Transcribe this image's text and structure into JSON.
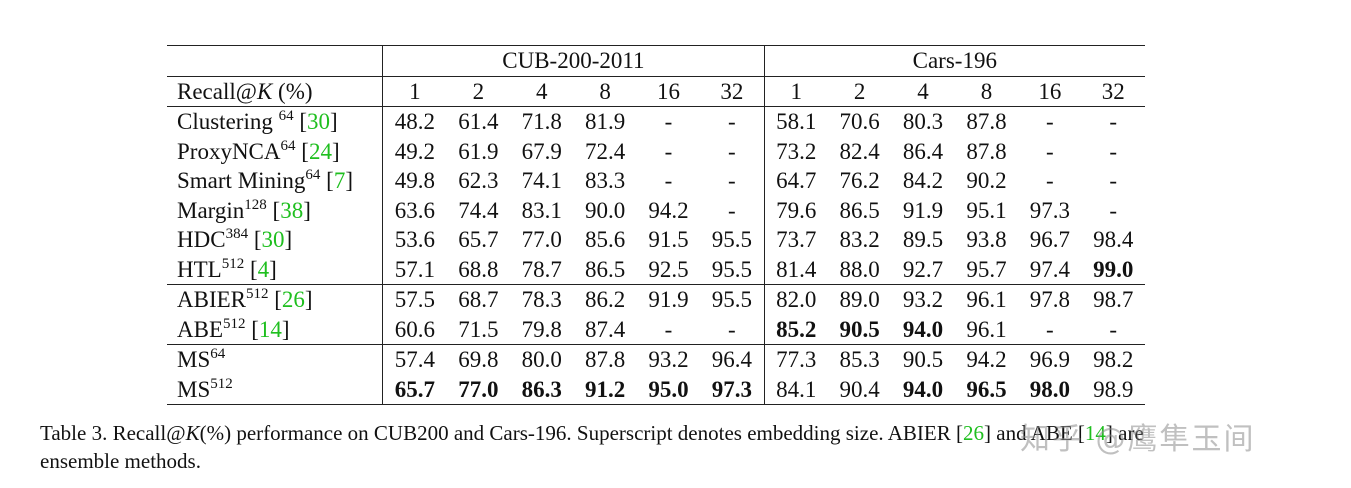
{
  "table": {
    "header_label": "Recall@K (%)",
    "group_a": "CUB-200-2011",
    "group_b": "Cars-196",
    "ks": [
      "1",
      "2",
      "4",
      "8",
      "16",
      "32"
    ],
    "rows": [
      {
        "name": "Clustering ",
        "sup": "64",
        "cite": "30",
        "cells": [
          "48.2",
          "61.4",
          "71.8",
          "81.9",
          "-",
          "-",
          "58.1",
          "70.6",
          "80.3",
          "87.8",
          "-",
          "-"
        ],
        "bold": []
      },
      {
        "name": "ProxyNCA",
        "sup": "64",
        "cite": "24",
        "cells": [
          "49.2",
          "61.9",
          "67.9",
          "72.4",
          "-",
          "-",
          "73.2",
          "82.4",
          "86.4",
          "87.8",
          "-",
          "-"
        ],
        "bold": []
      },
      {
        "name": "Smart Mining",
        "sup": "64",
        "cite": "7",
        "cells": [
          "49.8",
          "62.3",
          "74.1",
          "83.3",
          "-",
          "-",
          "64.7",
          "76.2",
          "84.2",
          "90.2",
          "-",
          "-"
        ],
        "bold": []
      },
      {
        "name": "Margin",
        "sup": "128",
        "cite": "38",
        "cells": [
          "63.6",
          "74.4",
          "83.1",
          "90.0",
          "94.2",
          "-",
          "79.6",
          "86.5",
          "91.9",
          "95.1",
          "97.3",
          "-"
        ],
        "bold": []
      },
      {
        "name": "HDC",
        "sup": "384",
        "cite": "30",
        "cells": [
          "53.6",
          "65.7",
          "77.0",
          "85.6",
          "91.5",
          "95.5",
          "73.7",
          "83.2",
          "89.5",
          "93.8",
          "96.7",
          "98.4"
        ],
        "bold": []
      },
      {
        "name": "HTL",
        "sup": "512",
        "cite": "4",
        "cells": [
          "57.1",
          "68.8",
          "78.7",
          "86.5",
          "92.5",
          "95.5",
          "81.4",
          "88.0",
          "92.7",
          "95.7",
          "97.4",
          "99.0"
        ],
        "bold": [
          11
        ]
      },
      {
        "name": "ABIER",
        "sup": "512",
        "cite": "26",
        "cells": [
          "57.5",
          "68.7",
          "78.3",
          "86.2",
          "91.9",
          "95.5",
          "82.0",
          "89.0",
          "93.2",
          "96.1",
          "97.8",
          "98.7"
        ],
        "bold": [],
        "group_start": true
      },
      {
        "name": "ABE",
        "sup": "512",
        "cite": "14",
        "cells": [
          "60.6",
          "71.5",
          "79.8",
          "87.4",
          "-",
          "-",
          "85.2",
          "90.5",
          "94.0",
          "96.1",
          "-",
          "-"
        ],
        "bold": [
          6,
          7,
          8
        ]
      },
      {
        "name": "MS",
        "sup": "64",
        "cite": "",
        "cells": [
          "57.4",
          "69.8",
          "80.0",
          "87.8",
          "93.2",
          "96.4",
          "77.3",
          "85.3",
          "90.5",
          "94.2",
          "96.9",
          "98.2"
        ],
        "bold": [],
        "group_start": true
      },
      {
        "name": "MS",
        "sup": "512",
        "cite": "",
        "cells": [
          "65.7",
          "77.0",
          "86.3",
          "91.2",
          "95.0",
          "97.3",
          "84.1",
          "90.4",
          "94.0",
          "96.5",
          "98.0",
          "98.9"
        ],
        "bold": [
          0,
          1,
          2,
          3,
          4,
          5,
          8,
          9,
          10
        ]
      }
    ]
  },
  "caption": {
    "line1_pre": "Table 3. Recall@",
    "line1_k": "K",
    "line1_post": "(%) performance on CUB200 and Cars-196.  Superscript denotes embedding size.  ABIER [26] and ABE [14] are",
    "line2": "ensemble methods."
  },
  "watermark": "知乎 @鹰隼玉间"
}
